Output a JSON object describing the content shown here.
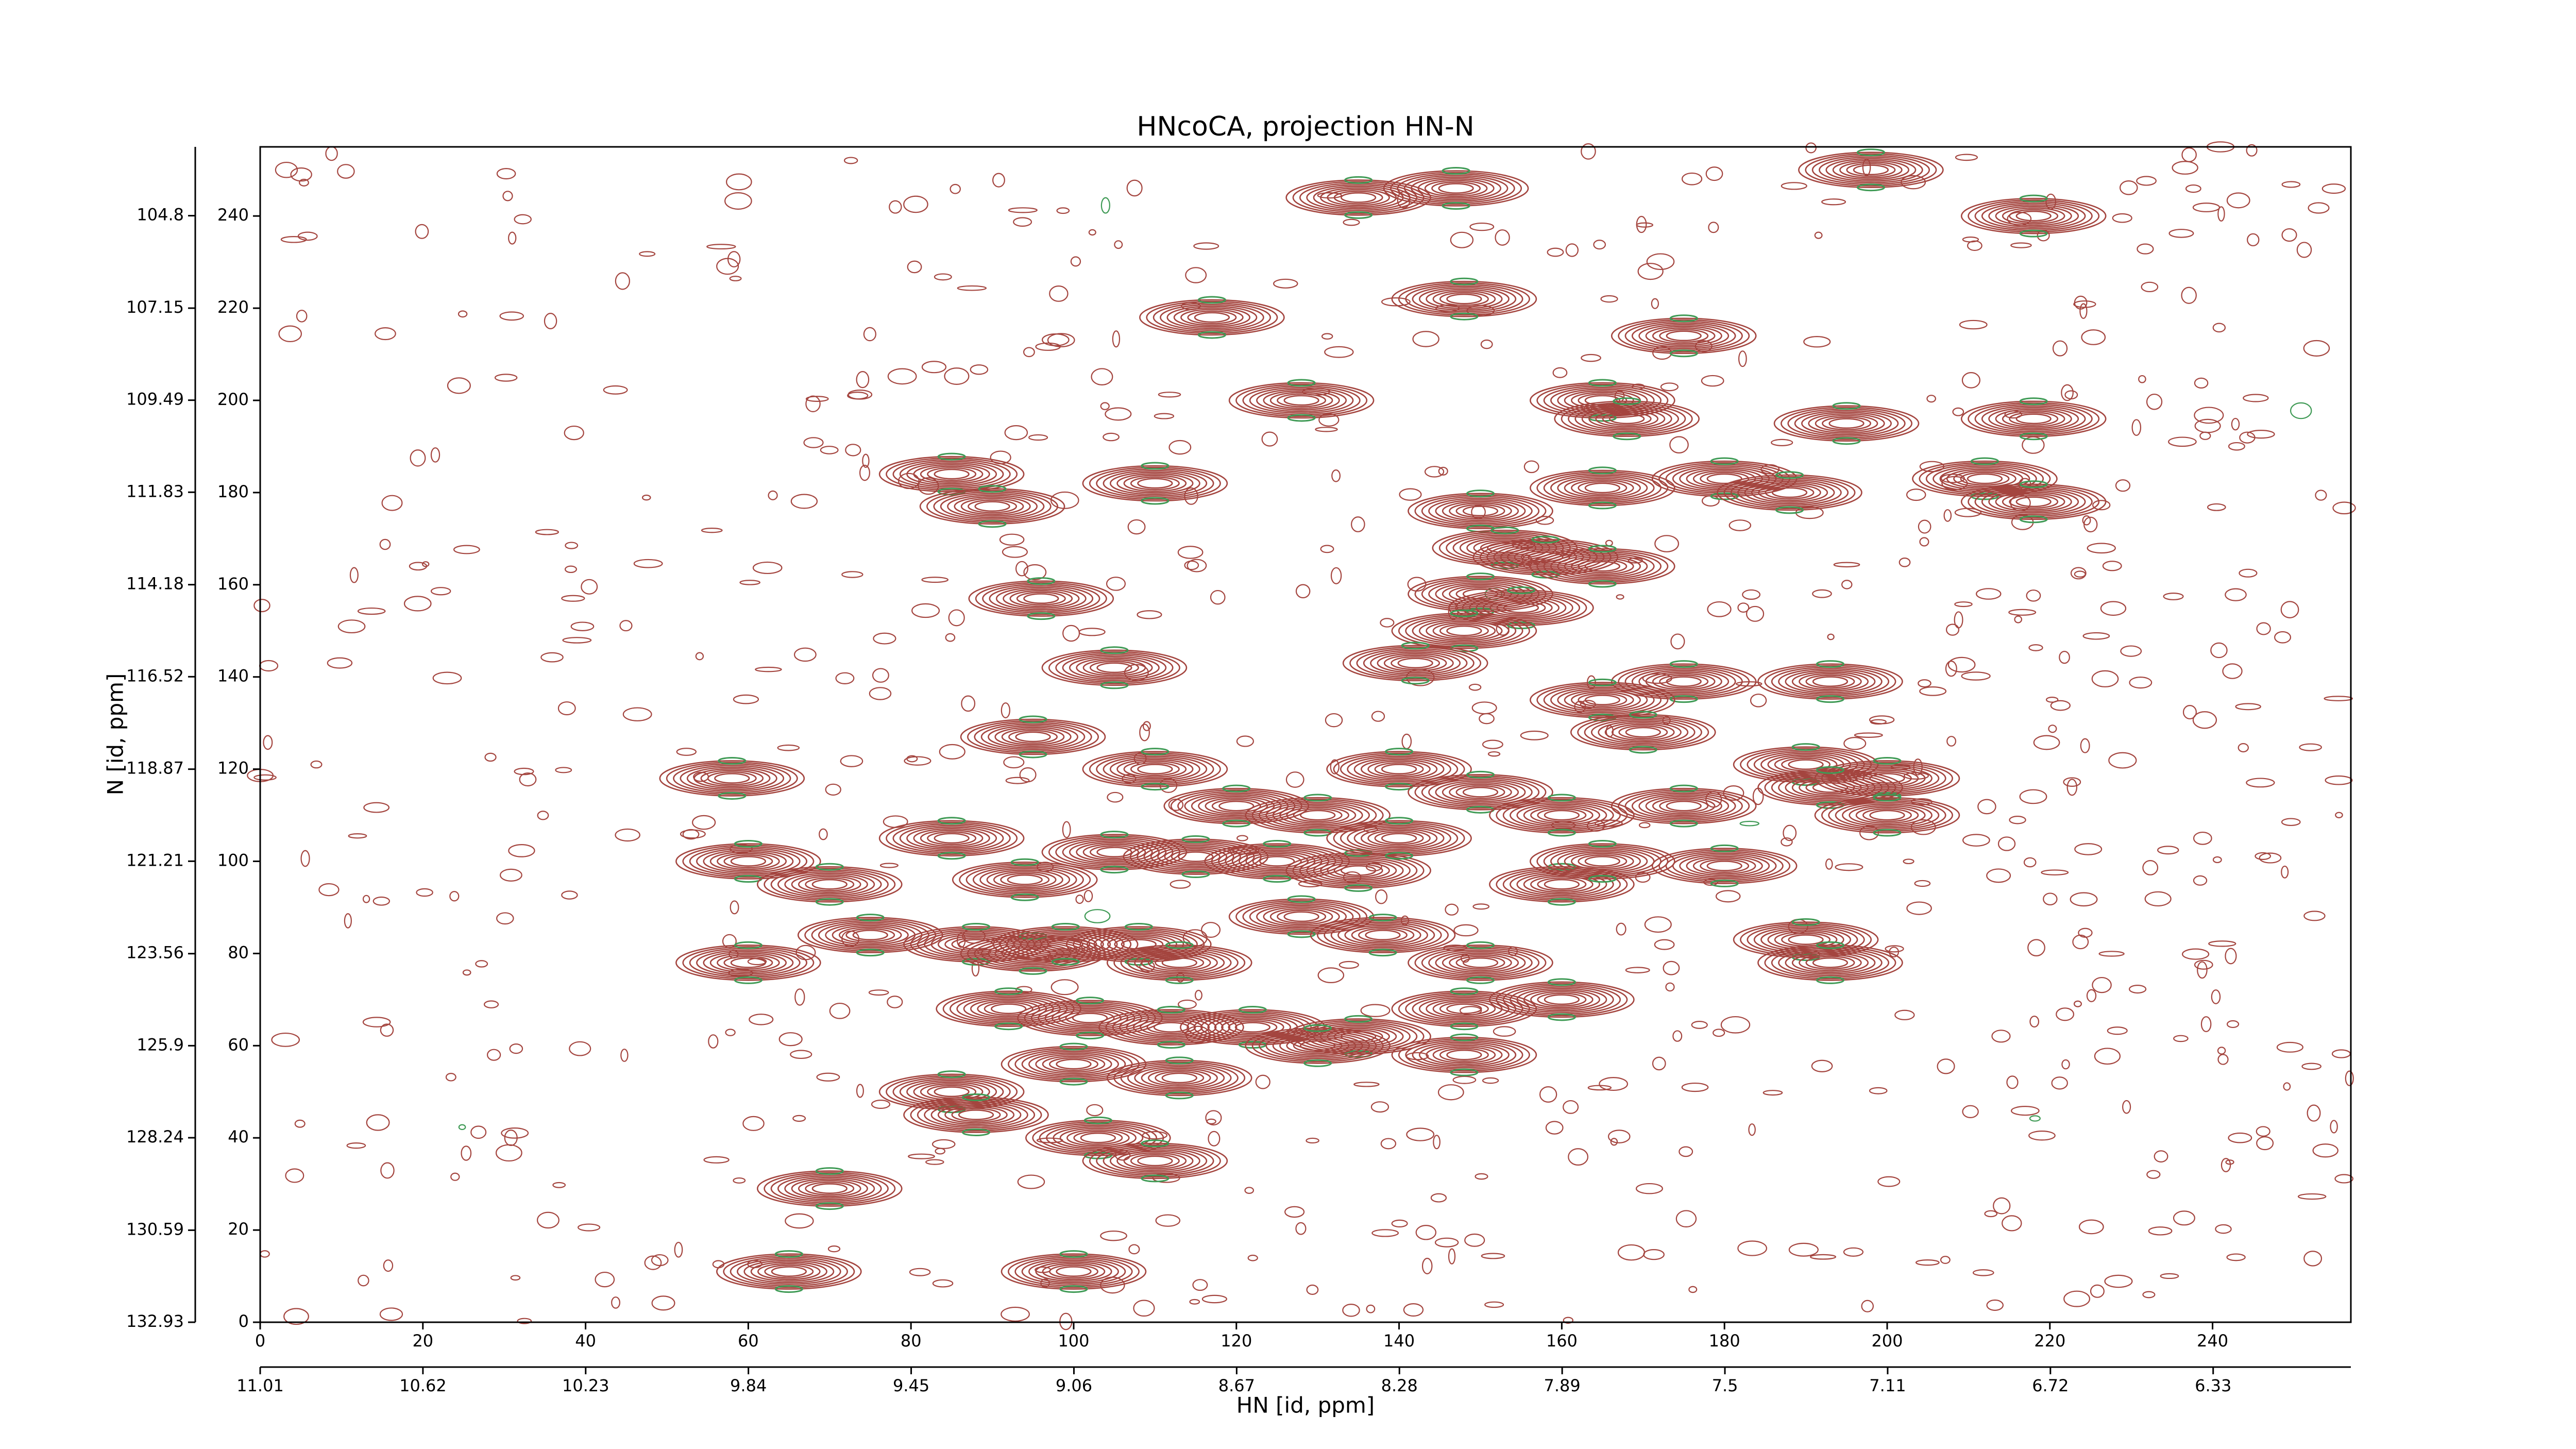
{
  "chart_data": {
    "type": "contour",
    "title": "HNcoCA, projection HN-N",
    "xlabel": "HN [id, ppm]",
    "ylabel": "N [id, ppm]",
    "xlim": [
      0,
      257
    ],
    "ylim": [
      0,
      255
    ],
    "xticks": [
      0,
      20,
      40,
      60,
      80,
      100,
      120,
      140,
      160,
      180,
      200,
      220,
      240
    ],
    "yticks": [
      0,
      20,
      40,
      60,
      80,
      100,
      120,
      140,
      160,
      180,
      200,
      220,
      240
    ],
    "x2lim": [
      11.01,
      6.0
    ],
    "x2ticks": [
      11.01,
      10.62,
      10.23,
      9.84,
      9.45,
      9.06,
      8.67,
      8.28,
      7.89,
      7.5,
      7.11,
      6.72,
      6.33
    ],
    "y2lim": [
      132.93,
      103.05
    ],
    "y2ticks": [
      132.93,
      130.59,
      128.24,
      125.9,
      123.56,
      121.21,
      118.87,
      116.52,
      114.18,
      111.83,
      109.49,
      107.15,
      104.8
    ],
    "colors": [
      "#a4453f",
      "#3f9a55"
    ],
    "peaks": {
      "x": [
        58,
        60,
        60,
        70,
        75,
        70,
        65,
        100,
        85,
        90,
        96,
        105,
        95,
        85,
        110,
        117,
        128,
        135,
        148,
        147,
        165,
        168,
        165,
        150,
        153,
        158,
        165,
        150,
        155,
        148,
        142,
        175,
        180,
        188,
        195,
        198,
        218,
        218,
        212,
        218,
        193,
        175,
        165,
        170,
        190,
        200,
        193,
        200,
        175,
        180,
        190,
        193,
        110,
        120,
        130,
        140,
        150,
        160,
        105,
        115,
        125,
        135,
        160,
        88,
        95,
        108,
        113,
        128,
        138,
        150,
        92,
        102,
        112,
        122,
        135,
        148,
        160,
        100,
        113,
        85,
        88,
        103,
        110,
        130,
        148,
        94,
        140,
        165,
        99
      ],
      "y": [
        118,
        100,
        78,
        95,
        84,
        29,
        11,
        11,
        184,
        177,
        157,
        142,
        127,
        105,
        182,
        218,
        200,
        244,
        222,
        246,
        200,
        196,
        181,
        176,
        168,
        166,
        164,
        158,
        155,
        150,
        143,
        214,
        183,
        180,
        195,
        250,
        240,
        196,
        183,
        178,
        139,
        139,
        135,
        128,
        121,
        118,
        116,
        110,
        112,
        99,
        83,
        78,
        120,
        112,
        110,
        120,
        115,
        110,
        102,
        101,
        100,
        98,
        95,
        82,
        80,
        82,
        78,
        88,
        84,
        78,
        68,
        66,
        64,
        64,
        62,
        68,
        70,
        56,
        53,
        50,
        45,
        40,
        35,
        60,
        58,
        96,
        105,
        100,
        82
      ]
    }
  }
}
